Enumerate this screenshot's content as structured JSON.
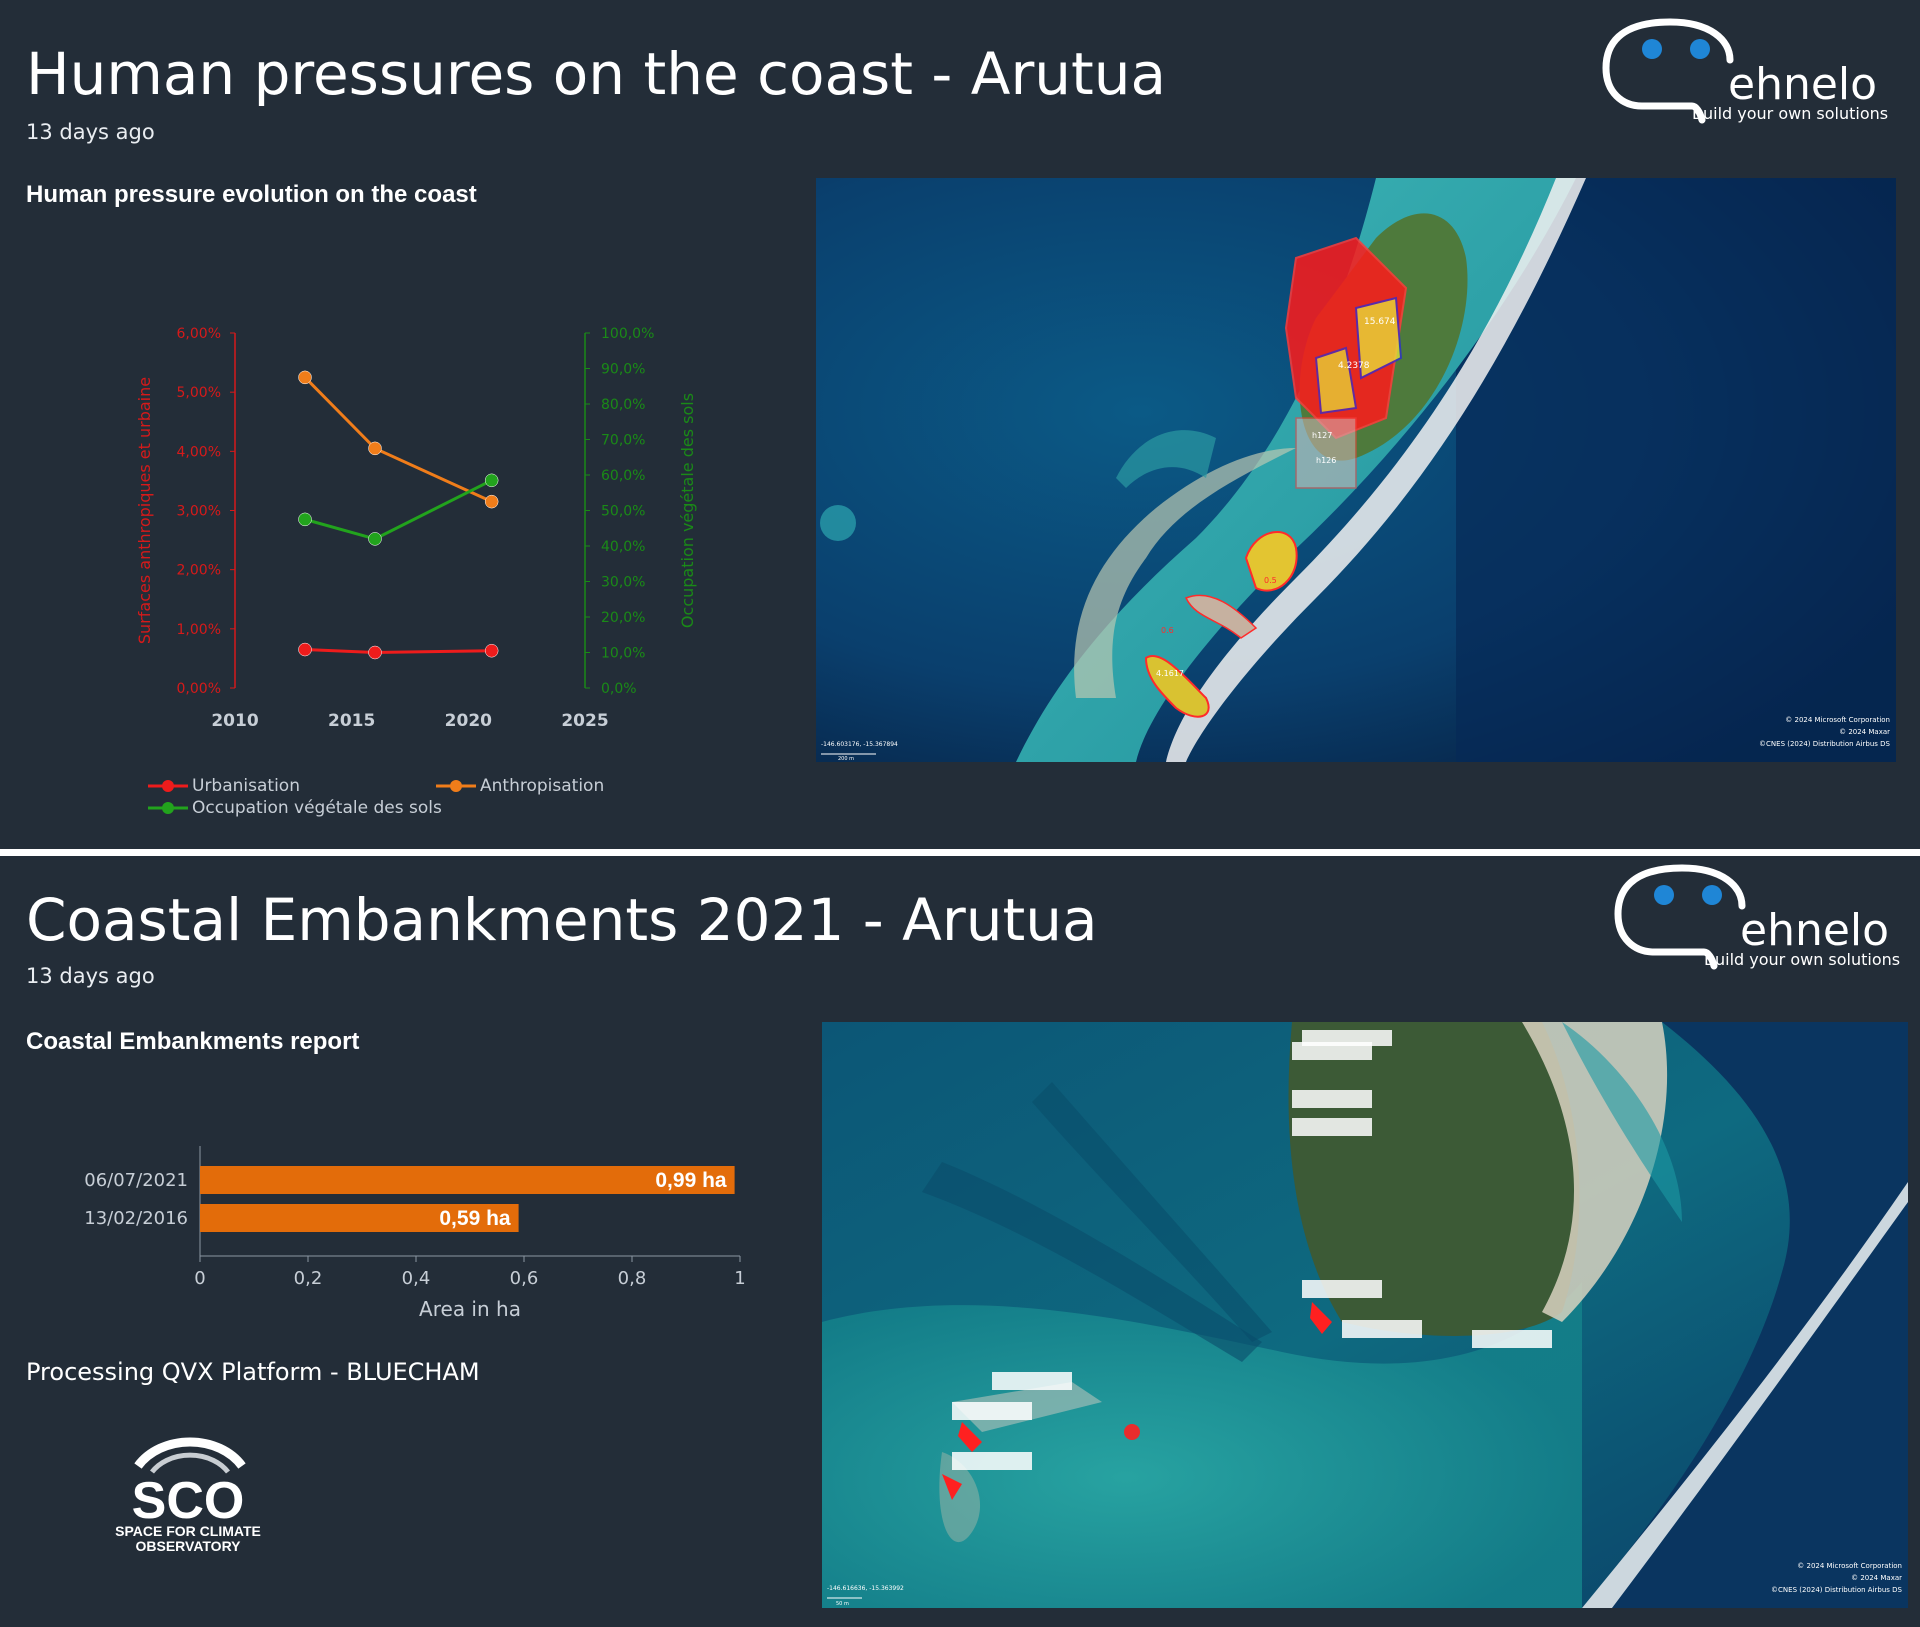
{
  "colors": {
    "background": "#232d38",
    "urbanisation": "#ee1c1c",
    "anthropisation": "#f07d1a",
    "vegetation": "#22a31d",
    "axis_left": "#d61a1a",
    "axis_right": "#1a8a17",
    "bar": "#e36c0a",
    "logo_dots": "#1f86d6"
  },
  "top_panel": {
    "title": "Human pressures on the coast - Arutua",
    "timestamp": "13 days ago",
    "section_title": "Human pressure evolution on the coast",
    "logo": {
      "name": "ehnelo",
      "tagline": "Build your own solutions"
    },
    "map": {
      "icon": "satellite-map-image",
      "coords": "-146.603176, -15.367894",
      "attribution": [
        "© 2024 Microsoft Corporation",
        "© 2024 Maxar",
        "©CNES (2024) Distribution Airbus DS"
      ],
      "scale": "200 m",
      "labels": [
        "15.674",
        "4.2378",
        "h127",
        "h126",
        "0.5",
        "0.6",
        "4.1617"
      ]
    }
  },
  "bottom_panel": {
    "title": "Coastal Embankments 2021 - Arutua",
    "timestamp": "13 days ago",
    "section_title": "Coastal Embankments report",
    "logo": {
      "name": "ehnelo",
      "tagline": "Build your own solutions"
    },
    "processing_note": "Processing QVX Platform - BLUECHAM",
    "sco_logo": {
      "mark": "SCO",
      "line1": "SPACE FOR CLIMATE",
      "line2": "OBSERVATORY"
    },
    "map": {
      "icon": "satellite-map-image",
      "coords": "-146.616636, -15.363992",
      "attribution": [
        "© 2024 Microsoft Corporation",
        "© 2024 Maxar",
        "©CNES (2024) Distribution Airbus DS"
      ],
      "scale": "50 m"
    }
  },
  "chart_data": [
    {
      "type": "line",
      "title": "",
      "ylabel": "Surfaces anthropiques et urbaine",
      "y2label": "Occupation végétale des sols",
      "xlim": [
        2010,
        2025
      ],
      "xticks": [
        "2010",
        "2015",
        "2020",
        "2025"
      ],
      "ylim": [
        0,
        6
      ],
      "yticks": [
        "0,00%",
        "1,00%",
        "2,00%",
        "3,00%",
        "4,00%",
        "5,00%",
        "6,00%"
      ],
      "y2lim": [
        0,
        100
      ],
      "y2ticks": [
        "0,0%",
        "10,0%",
        "20,0%",
        "30,0%",
        "40,0%",
        "50,0%",
        "60,0%",
        "70,0%",
        "80,0%",
        "90,0%",
        "100,0%"
      ],
      "series": [
        {
          "name": "Urbanisation",
          "axis": "left",
          "color": "#ee1c1c",
          "x": [
            2013,
            2016,
            2021
          ],
          "y": [
            0.65,
            0.6,
            0.63
          ]
        },
        {
          "name": "Anthropisation",
          "axis": "left",
          "color": "#f07d1a",
          "x": [
            2013,
            2016,
            2021
          ],
          "y": [
            5.25,
            4.05,
            3.15
          ]
        },
        {
          "name": "Occupation végétale des sols",
          "axis": "right",
          "color": "#22a31d",
          "x": [
            2013,
            2016,
            2021
          ],
          "y": [
            47.5,
            42.0,
            58.5
          ]
        }
      ],
      "legend": "bottom"
    },
    {
      "type": "bar",
      "orientation": "horizontal",
      "title": "",
      "categories": [
        "06/07/2021",
        "13/02/2016"
      ],
      "values": [
        0.99,
        0.59
      ],
      "value_labels": [
        "0,99 ha",
        "0,59 ha"
      ],
      "xlabel": "Area in ha",
      "xlim": [
        0,
        1
      ],
      "xticks": [
        "0",
        "0,2",
        "0,4",
        "0,6",
        "0,8",
        "1"
      ],
      "color": "#e36c0a"
    }
  ]
}
